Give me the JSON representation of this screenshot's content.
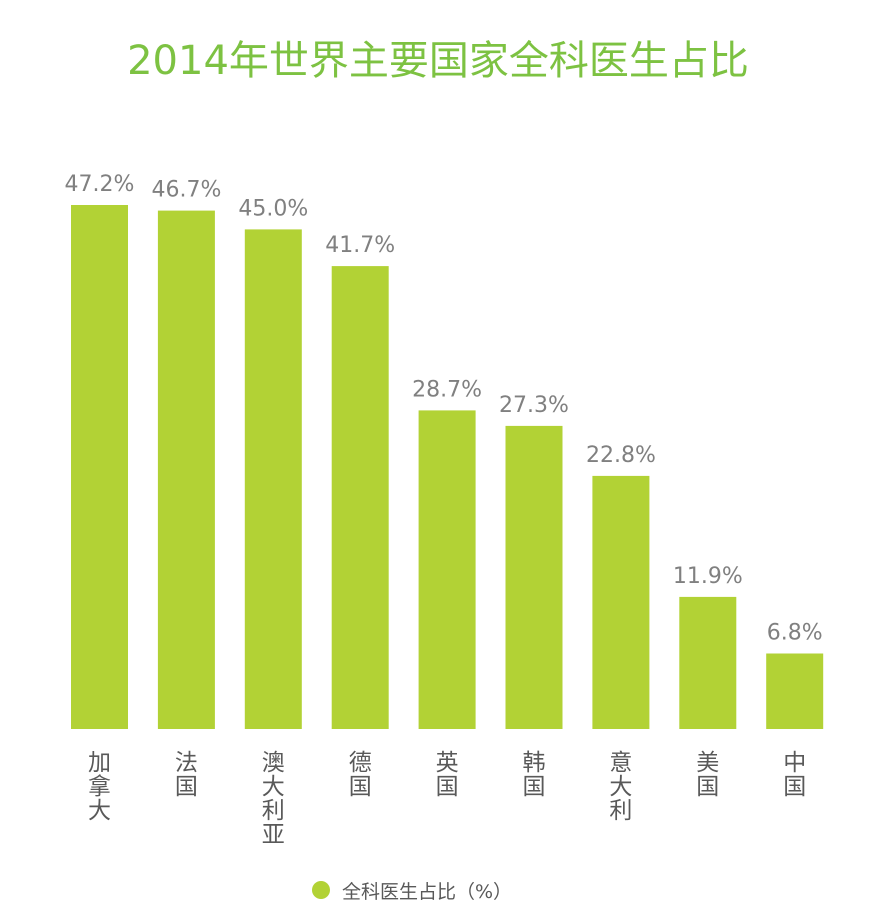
{
  "chart_data": {
    "type": "bar",
    "title": "2014年世界主要国家全科医生占比",
    "categories": [
      "加拿大",
      "法国",
      "澳大利亚",
      "德国",
      "英国",
      "韩国",
      "意大利",
      "美国",
      "中国"
    ],
    "series": [
      {
        "name": "全科医生占比（%）",
        "values": [
          47.2,
          46.7,
          45.0,
          41.7,
          28.7,
          27.3,
          22.8,
          11.9,
          6.8
        ],
        "value_labels": [
          "47.2%",
          "46.7%",
          "45.0%",
          "41.7%",
          "28.7%",
          "27.3%",
          "22.8%",
          "11.9%",
          "6.8%"
        ]
      }
    ],
    "ylim": [
      0,
      47.2
    ],
    "grid": false,
    "legend": "bottom",
    "colors": {
      "bar": "#b2d235",
      "title": "#7dc242",
      "value_label": "#808080",
      "category_label": "#595959"
    }
  }
}
